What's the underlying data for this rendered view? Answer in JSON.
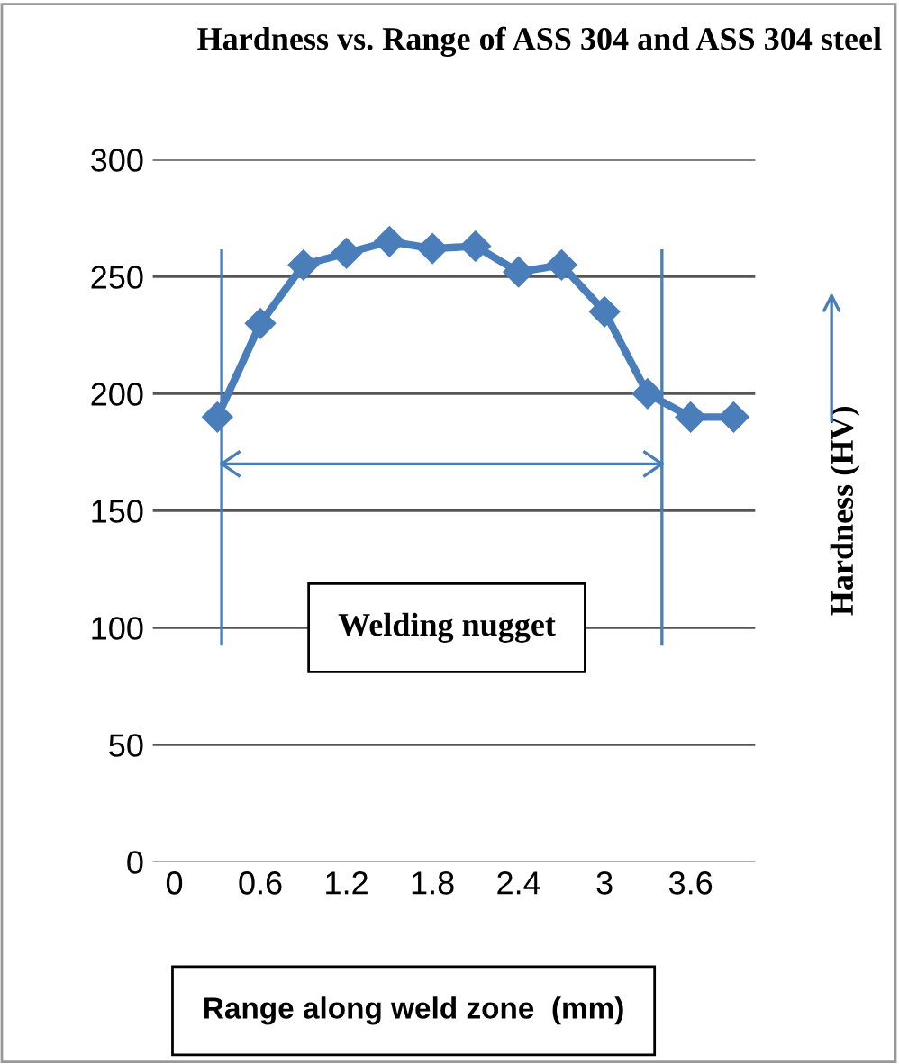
{
  "chart_data": {
    "type": "line",
    "title": "Hardness vs. Range of ASS 304 and ASS 304 steel",
    "xlabel": "Range along weld zone  (mm)",
    "ylabel": "Hardness (HV)",
    "x": [
      0.3,
      0.6,
      0.9,
      1.2,
      1.5,
      1.8,
      2.1,
      2.4,
      2.7,
      3.0,
      3.3,
      3.6,
      3.9
    ],
    "series": [
      {
        "color": "#4a7ebb",
        "values": [
          190,
          230,
          255,
          260,
          265,
          262,
          263,
          252,
          255,
          235,
          200,
          190,
          190
        ]
      }
    ],
    "xlim": [
      -0.15,
      4.05
    ],
    "xticks": [
      0,
      0.6,
      1.2,
      1.8,
      2.4,
      {
        "value": 3.0,
        "label": "3"
      },
      3.6
    ],
    "ylim": [
      0,
      300
    ],
    "yticks": [
      0,
      50,
      100,
      150,
      200,
      250,
      300
    ],
    "grid": "y",
    "marker": "diamond",
    "line_style": "solid",
    "legend": false,
    "ref_lines": [
      {
        "axis": "x",
        "value": 0.33,
        "color": "#4a7ebb"
      },
      {
        "axis": "x",
        "value": 3.4,
        "color": "#4a7ebb"
      },
      {
        "axis": "y",
        "value": 170,
        "color": "#4a7ebb"
      }
    ],
    "annotations": [
      "Welding nugget"
    ]
  }
}
